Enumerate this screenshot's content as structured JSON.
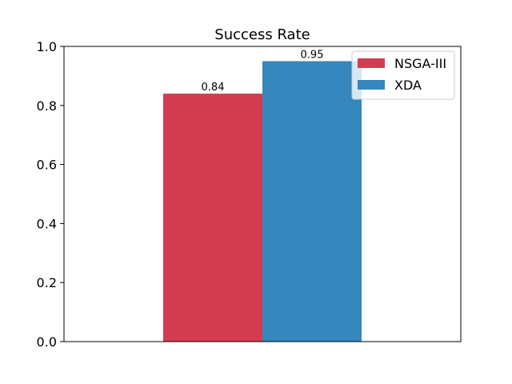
{
  "chart_data": {
    "type": "bar",
    "title": "Success Rate",
    "xlabel": "",
    "ylabel": "",
    "ylim": [
      0,
      1.0
    ],
    "yticks": [
      "0.0",
      "0.2",
      "0.4",
      "0.6",
      "0.8",
      "1.0"
    ],
    "grid": false,
    "legend_position": "top-right",
    "series": [
      {
        "name": "NSGA-III",
        "values": [
          0.84
        ],
        "data_label": "0.84",
        "color": "#d43d51"
      },
      {
        "name": "XDA",
        "values": [
          0.95
        ],
        "data_label": "0.95",
        "color": "#3587be"
      }
    ]
  }
}
